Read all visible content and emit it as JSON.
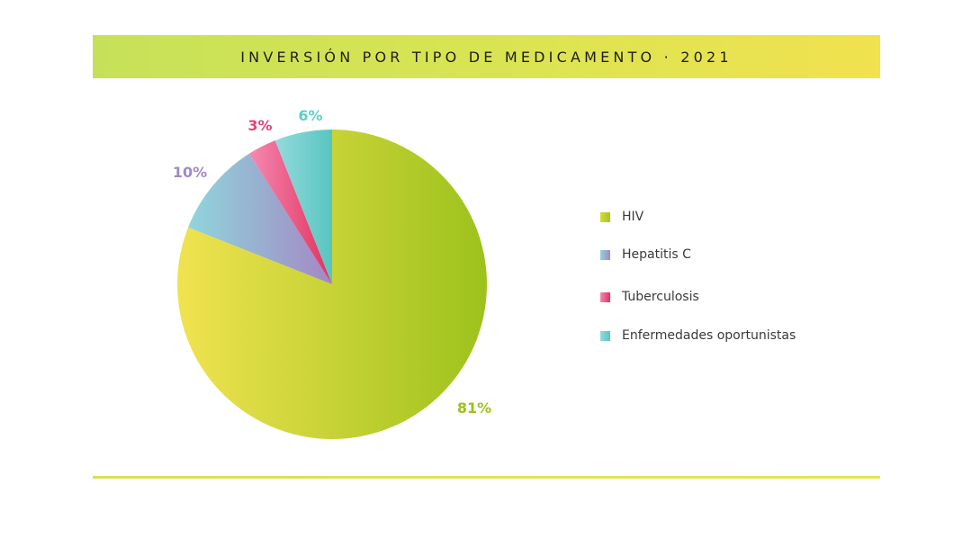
{
  "header": {
    "title": "INVERSIÓN POR TIPO DE MEDICAMENTO · 2021"
  },
  "chart_data": {
    "type": "pie",
    "title": "INVERSIÓN POR TIPO DE MEDICAMENTO · 2021",
    "categories": [
      "HIV",
      "Hepatitis C",
      "Tuberculosis",
      "Enfermedades oportunistas"
    ],
    "values": [
      81,
      10,
      3,
      6
    ],
    "data_labels": [
      "81%",
      "10%",
      "3%",
      "6%"
    ],
    "label_colors": [
      "#9cc11c",
      "#a088c3",
      "#e4437a",
      "#5fcdc6"
    ],
    "slice_gradients": [
      [
        "#f0e350",
        "#9dc21c"
      ],
      [
        "#8fd6dc",
        "#a487c4"
      ],
      [
        "#f58ab2",
        "#e0315f"
      ],
      [
        "#94dadd",
        "#58c5bf"
      ]
    ],
    "legend_placement": "right"
  },
  "legend": {
    "items": [
      {
        "label": "HIV",
        "swatch": [
          "#d3dc3a",
          "#a5c51e"
        ]
      },
      {
        "label": "Hepatitis C",
        "swatch": [
          "#90d3dc",
          "#a487c4"
        ]
      },
      {
        "label": "Tuberculosis",
        "swatch": [
          "#f28ab2",
          "#e0315f"
        ]
      },
      {
        "label": "Enfermedades oportunistas",
        "swatch": [
          "#94dadd",
          "#58c5bf"
        ]
      }
    ]
  }
}
